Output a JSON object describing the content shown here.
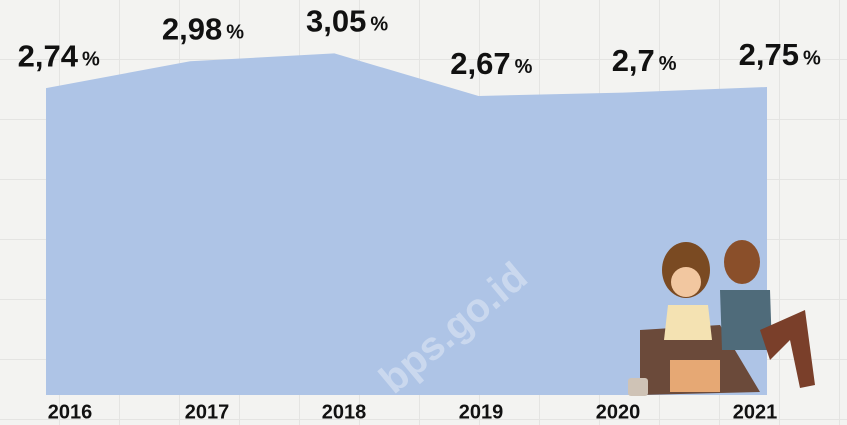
{
  "chart_data": {
    "type": "area",
    "categories": [
      "2016",
      "2017",
      "2018",
      "2019",
      "2020",
      "2021"
    ],
    "values": [
      2.74,
      2.98,
      3.05,
      2.67,
      2.7,
      2.75
    ],
    "value_labels": [
      "2,74",
      "2,98",
      "3,05",
      "2,67",
      "2,7",
      "2,75"
    ],
    "unit": "%",
    "color": "#aec4e6",
    "ylim": [
      0,
      3.5
    ],
    "watermark": "bps.go.id"
  }
}
